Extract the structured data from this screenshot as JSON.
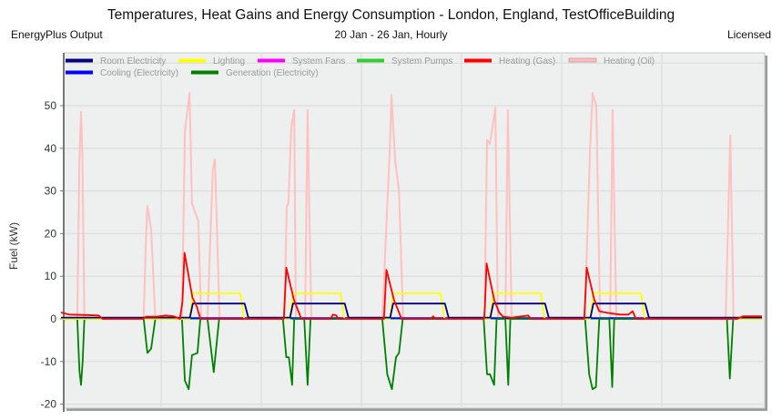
{
  "header": {
    "title": "Temperatures, Heat Gains and Energy Consumption - London, England, TestOfficeBuilding",
    "left": "EnergyPlus Output",
    "center": "20 Jan - 26 Jan, Hourly",
    "right": "Licensed"
  },
  "chart_data": {
    "type": "line",
    "title": "Temperatures, Heat Gains and Energy Consumption - London, England, TestOfficeBuilding",
    "xlabel": "",
    "ylabel": "Fuel (kW)",
    "x_unit": "hours from 20 Jan 00:00",
    "xlim": [
      0,
      168
    ],
    "ylim": [
      -21,
      62
    ],
    "yticks": [
      50,
      40,
      30,
      20,
      10,
      0,
      -10,
      -20
    ],
    "grid": true,
    "legend_position": "top",
    "series": [
      {
        "name": "Room Electricity",
        "color": "#000080",
        "points": [
          [
            0,
            0.3
          ],
          [
            30.9,
            0.3
          ],
          [
            31.6,
            3.6
          ],
          [
            44,
            3.6
          ],
          [
            44.9,
            0.3
          ],
          [
            54.9,
            0.3
          ],
          [
            55.6,
            3.6
          ],
          [
            68,
            3.6
          ],
          [
            68.9,
            0.3
          ],
          [
            78.9,
            0.3
          ],
          [
            79.6,
            3.6
          ],
          [
            92,
            3.6
          ],
          [
            92.9,
            0.3
          ],
          [
            102.9,
            0.3
          ],
          [
            103.6,
            3.6
          ],
          [
            116,
            3.6
          ],
          [
            116.9,
            0.3
          ],
          [
            126.9,
            0.3
          ],
          [
            127.6,
            3.6
          ],
          [
            140,
            3.6
          ],
          [
            140.9,
            0.3
          ],
          [
            168,
            0.3
          ]
        ]
      },
      {
        "name": "Lighting",
        "color": "#ffff00",
        "points": [
          [
            0,
            0
          ],
          [
            30.8,
            0
          ],
          [
            31.6,
            6
          ],
          [
            43,
            6
          ],
          [
            43.9,
            0
          ],
          [
            54.8,
            0
          ],
          [
            55.6,
            6
          ],
          [
            67,
            6
          ],
          [
            67.9,
            0
          ],
          [
            78.8,
            0
          ],
          [
            79.6,
            6
          ],
          [
            91,
            6
          ],
          [
            91.9,
            0
          ],
          [
            102.8,
            0
          ],
          [
            103.6,
            6
          ],
          [
            115,
            6
          ],
          [
            115.9,
            0
          ],
          [
            126.8,
            0
          ],
          [
            127.6,
            6
          ],
          [
            139,
            6
          ],
          [
            139.9,
            0
          ],
          [
            168,
            0
          ]
        ]
      },
      {
        "name": "System Fans",
        "color": "#ff00ff",
        "points": [
          [
            0,
            0
          ],
          [
            168,
            0
          ]
        ]
      },
      {
        "name": "System Pumps",
        "color": "#33cc33",
        "points": [
          [
            0,
            0
          ],
          [
            168,
            0
          ]
        ]
      },
      {
        "name": "Heating (Gas)",
        "color": "#ff0000",
        "points": [
          [
            0,
            1.5
          ],
          [
            2,
            1
          ],
          [
            6,
            0.9
          ],
          [
            9,
            0.8
          ],
          [
            10,
            0
          ],
          [
            19.8,
            0
          ],
          [
            20.3,
            0.5
          ],
          [
            23,
            0.5
          ],
          [
            25,
            0.8
          ],
          [
            27,
            0.6
          ],
          [
            28.5,
            0
          ],
          [
            29.1,
            4
          ],
          [
            29.6,
            15.5
          ],
          [
            31.5,
            5
          ],
          [
            32.5,
            3
          ],
          [
            33.4,
            0
          ],
          [
            53.4,
            0
          ],
          [
            53.6,
            4
          ],
          [
            54,
            12
          ],
          [
            55.8,
            4.5
          ],
          [
            57,
            1.5
          ],
          [
            57.6,
            0
          ],
          [
            64.6,
            0
          ],
          [
            65.2,
            1
          ],
          [
            66,
            0.8
          ],
          [
            66.4,
            0
          ],
          [
            77.4,
            0
          ],
          [
            77.6,
            4
          ],
          [
            78,
            11.5
          ],
          [
            79.8,
            4.5
          ],
          [
            81,
            1.5
          ],
          [
            81.6,
            0
          ],
          [
            88.6,
            0
          ],
          [
            89.2,
            0.6
          ],
          [
            89.8,
            0
          ],
          [
            101.4,
            0
          ],
          [
            101.6,
            3
          ],
          [
            102,
            13
          ],
          [
            103.8,
            4.5
          ],
          [
            105,
            1.5
          ],
          [
            106,
            0.5
          ],
          [
            108,
            0.3
          ],
          [
            112,
            0.8
          ],
          [
            112.6,
            0
          ],
          [
            125.4,
            0
          ],
          [
            125.6,
            4
          ],
          [
            126,
            12
          ],
          [
            127.8,
            4.5
          ],
          [
            129,
            1.8
          ],
          [
            131,
            1.4
          ],
          [
            134,
            1
          ],
          [
            136,
            1
          ],
          [
            137,
            1.8
          ],
          [
            137.8,
            0
          ],
          [
            162,
            0
          ],
          [
            163.5,
            0.6
          ],
          [
            168,
            0.6
          ]
        ]
      },
      {
        "name": "Heating (Oil)",
        "color": "#ffc0c0",
        "points": [
          [
            0,
            0
          ],
          [
            3.9,
            0
          ],
          [
            4.4,
            37
          ],
          [
            4.8,
            48.5
          ],
          [
            5.1,
            39
          ],
          [
            5.6,
            0
          ],
          [
            19.8,
            0
          ],
          [
            20.4,
            20
          ],
          [
            20.7,
            26.5
          ],
          [
            21.6,
            21
          ],
          [
            22.6,
            0
          ],
          [
            29,
            0
          ],
          [
            29.7,
            44
          ],
          [
            30.8,
            53
          ],
          [
            31.4,
            27
          ],
          [
            32.9,
            23
          ],
          [
            33.6,
            0
          ],
          [
            35.1,
            0
          ],
          [
            36.4,
            35
          ],
          [
            36.9,
            37.5
          ],
          [
            38,
            0
          ],
          [
            53.5,
            0
          ],
          [
            54.1,
            26.5
          ],
          [
            54.5,
            27
          ],
          [
            55.2,
            45
          ],
          [
            55.9,
            49
          ],
          [
            56.3,
            0
          ],
          [
            58.5,
            0
          ],
          [
            59.1,
            49
          ],
          [
            60,
            0
          ],
          [
            77,
            0
          ],
          [
            78.8,
            40
          ],
          [
            79.2,
            52.5
          ],
          [
            80.1,
            37
          ],
          [
            81,
            30
          ],
          [
            82,
            0
          ],
          [
            101.5,
            0
          ],
          [
            102.1,
            42
          ],
          [
            102.8,
            41
          ],
          [
            104.1,
            49.5
          ],
          [
            104.7,
            0
          ],
          [
            106.5,
            0
          ],
          [
            107.1,
            49
          ],
          [
            108,
            0
          ],
          [
            125.5,
            0
          ],
          [
            126.8,
            40
          ],
          [
            127.4,
            53
          ],
          [
            128.3,
            50
          ],
          [
            129.2,
            0
          ],
          [
            131.6,
            0
          ],
          [
            132.2,
            49
          ],
          [
            133.1,
            0
          ],
          [
            159.3,
            0
          ],
          [
            160.4,
            43
          ],
          [
            161.2,
            0
          ],
          [
            168,
            0
          ]
        ]
      },
      {
        "name": "Cooling (Electricity)",
        "color": "#0000ff",
        "points": [
          [
            0,
            0.2
          ],
          [
            168,
            0.2
          ]
        ]
      },
      {
        "name": "Generation (Electricity)",
        "color": "#008000",
        "points": [
          [
            0,
            0
          ],
          [
            3.9,
            0
          ],
          [
            4.4,
            -12
          ],
          [
            4.8,
            -15.5
          ],
          [
            5.2,
            -10
          ],
          [
            5.6,
            0
          ],
          [
            19.8,
            0
          ],
          [
            20.7,
            -8
          ],
          [
            21.6,
            -7
          ],
          [
            22.6,
            0
          ],
          [
            29,
            0
          ],
          [
            29.7,
            -14.5
          ],
          [
            30.6,
            -16.5
          ],
          [
            31.4,
            -8.5
          ],
          [
            32.7,
            -8
          ],
          [
            33.4,
            0
          ],
          [
            35.1,
            0
          ],
          [
            36.6,
            -12.5
          ],
          [
            37.9,
            0
          ],
          [
            53.2,
            0
          ],
          [
            54,
            -9
          ],
          [
            54.6,
            -9
          ],
          [
            55.4,
            -15.5
          ],
          [
            55.9,
            0
          ],
          [
            58.3,
            0
          ],
          [
            59.1,
            -15.5
          ],
          [
            59.8,
            0
          ],
          [
            77,
            0
          ],
          [
            78.2,
            -13
          ],
          [
            79.3,
            -16.5
          ],
          [
            80.3,
            -9
          ],
          [
            81,
            -8
          ],
          [
            81.9,
            0
          ],
          [
            101.3,
            0
          ],
          [
            102.1,
            -13
          ],
          [
            102.8,
            -13
          ],
          [
            103.8,
            -15.5
          ],
          [
            104.4,
            0
          ],
          [
            106.5,
            0
          ],
          [
            107.2,
            -15.5
          ],
          [
            107.7,
            0
          ],
          [
            125.6,
            0
          ],
          [
            126.6,
            -13
          ],
          [
            127.4,
            -16.5
          ],
          [
            128.2,
            -16
          ],
          [
            129,
            0
          ],
          [
            131.4,
            0
          ],
          [
            132.1,
            -16
          ],
          [
            132.6,
            0
          ],
          [
            159.6,
            0
          ],
          [
            160.3,
            -14
          ],
          [
            161.1,
            0
          ],
          [
            168,
            0
          ]
        ]
      }
    ]
  }
}
